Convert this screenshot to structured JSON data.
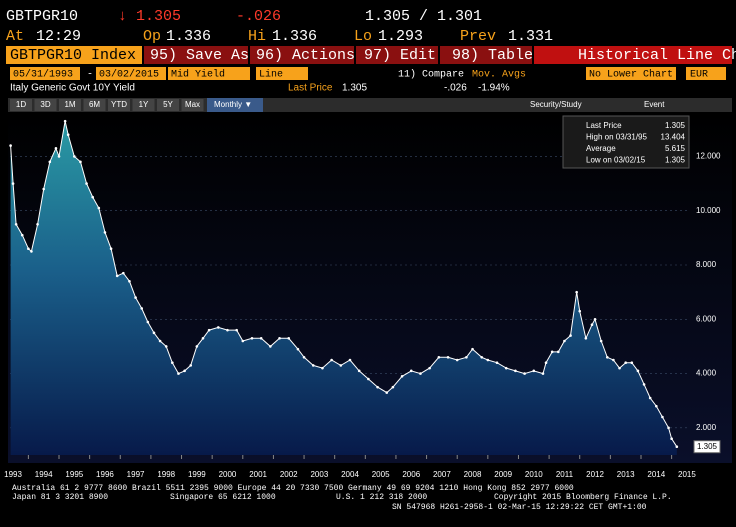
{
  "header": {
    "ticker": "GBTPGR10",
    "price": "↓ 1.305",
    "change": "-.026",
    "bid_ask": "1.305 / 1.301",
    "time_label": "At",
    "time": "12:29",
    "open_label": "Op",
    "open": "1.336",
    "high_label": "Hi",
    "high": "1.336",
    "low_label": "Lo",
    "low": "1.293",
    "prev_label": "Prev",
    "prev": "1.331"
  },
  "toolbar": {
    "security": "GBTPGR10 Index",
    "save": "95) Save As...",
    "actions": "96) Actions",
    "edit": "97) Edit",
    "table": "98) Table",
    "view": "Historical Line Chart"
  },
  "controls": {
    "start": "05/31/1993",
    "dash": "-",
    "end": "03/02/2015",
    "field": "Mid Yield",
    "style": "Line",
    "compare": "11) Compare",
    "mov_avgs": "Mov. Avgs",
    "lower": "No Lower Chart",
    "currency": "EUR"
  },
  "info": {
    "name": "Italy Generic Govt 10Y Yield",
    "last_label": "Last Price",
    "last": "1.305",
    "change": "-.026",
    "pct": "-1.94%"
  },
  "ranges": [
    "1D",
    "3D",
    "1M",
    "6M",
    "YTD",
    "1Y",
    "5Y",
    "Max"
  ],
  "period": "Monthly ▼",
  "study": "Security/Study",
  "event": "Event",
  "legend": {
    "rows": [
      [
        "Last Price",
        "1.305"
      ],
      [
        "High on 03/31/95",
        "13.404"
      ],
      [
        "Average",
        "5.615"
      ],
      [
        "Low on 03/02/15",
        "1.305"
      ]
    ]
  },
  "footer": [
    "Australia 61 2 9777 8600 Brazil 5511 2395 9000 Europe 44 20 7330 7500 Germany 49 69 9204 1210 Hong Kong 852 2977 6000",
    "Japan 81 3 3201 8900",
    "Singapore 65 6212 1000",
    "U.S. 1 212 318 2000",
    "Copyright 2015 Bloomberg Finance L.P.",
    "SN 547968 H261-2958-1 02-Mar-15 12:29:22 CET  GMT+1:00"
  ],
  "chart_data": {
    "type": "area",
    "xlim": [
      1993.4,
      2015.6
    ],
    "xticks": [
      1993,
      1994,
      1995,
      1996,
      1997,
      1998,
      1999,
      2000,
      2001,
      2002,
      2003,
      2004,
      2005,
      2006,
      2007,
      2008,
      2009,
      2010,
      2011,
      2012,
      2013,
      2014,
      2015
    ],
    "ylim": [
      1.0,
      13.6
    ],
    "yticks": [
      {
        "value": 2,
        "label": "2.000"
      },
      {
        "value": 4,
        "label": "4.000"
      },
      {
        "value": 6,
        "label": "6.000"
      },
      {
        "value": 8,
        "label": "8.000"
      },
      {
        "value": 10,
        "label": "10.000"
      },
      {
        "value": 12,
        "label": "12.000"
      }
    ],
    "grid": true,
    "series": [
      {
        "name": "Last Price",
        "color": "#ffffff",
        "x": [
          1993.42,
          1993.5,
          1993.6,
          1993.8,
          1994.0,
          1994.1,
          1994.3,
          1994.5,
          1994.7,
          1994.9,
          1995.0,
          1995.2,
          1995.3,
          1995.5,
          1995.7,
          1995.9,
          1996.1,
          1996.3,
          1996.5,
          1996.7,
          1996.9,
          1997.1,
          1997.3,
          1997.5,
          1997.7,
          1997.9,
          1998.1,
          1998.3,
          1998.5,
          1998.7,
          1998.9,
          1999.1,
          1999.3,
          1999.5,
          1999.7,
          1999.9,
          2000.2,
          2000.5,
          2000.8,
          2001.0,
          2001.3,
          2001.6,
          2001.9,
          2002.2,
          2002.5,
          2002.8,
          2003.0,
          2003.3,
          2003.6,
          2003.9,
          2004.2,
          2004.5,
          2004.8,
          2005.1,
          2005.4,
          2005.7,
          2005.9,
          2006.2,
          2006.5,
          2006.8,
          2007.1,
          2007.4,
          2007.7,
          2008.0,
          2008.3,
          2008.5,
          2008.8,
          2009.0,
          2009.3,
          2009.6,
          2009.9,
          2010.2,
          2010.5,
          2010.8,
          2010.9,
          2011.1,
          2011.3,
          2011.5,
          2011.7,
          2011.9,
          2012.0,
          2012.2,
          2012.4,
          2012.5,
          2012.7,
          2012.9,
          2013.1,
          2013.3,
          2013.5,
          2013.7,
          2013.9,
          2014.1,
          2014.3,
          2014.5,
          2014.7,
          2014.9,
          2015.0,
          2015.17
        ],
        "values": [
          12.4,
          11.0,
          9.5,
          9.1,
          8.6,
          8.5,
          9.5,
          10.8,
          11.8,
          12.3,
          12.0,
          13.3,
          12.8,
          12.0,
          11.8,
          11.0,
          10.5,
          10.1,
          9.2,
          8.6,
          7.6,
          7.7,
          7.4,
          6.8,
          6.4,
          5.9,
          5.5,
          5.2,
          5.0,
          4.4,
          4.0,
          4.1,
          4.3,
          5.0,
          5.3,
          5.6,
          5.7,
          5.6,
          5.6,
          5.2,
          5.3,
          5.3,
          5.0,
          5.3,
          5.3,
          4.9,
          4.6,
          4.3,
          4.2,
          4.5,
          4.3,
          4.5,
          4.1,
          3.8,
          3.5,
          3.3,
          3.5,
          3.9,
          4.1,
          4.0,
          4.2,
          4.6,
          4.6,
          4.5,
          4.6,
          4.9,
          4.6,
          4.5,
          4.4,
          4.2,
          4.1,
          4.0,
          4.1,
          4.0,
          4.4,
          4.8,
          4.8,
          5.2,
          5.4,
          7.0,
          6.3,
          5.3,
          5.8,
          6.0,
          5.2,
          4.6,
          4.5,
          4.2,
          4.4,
          4.4,
          4.1,
          3.6,
          3.1,
          2.8,
          2.4,
          2.0,
          1.6,
          1.305
        ]
      }
    ]
  }
}
